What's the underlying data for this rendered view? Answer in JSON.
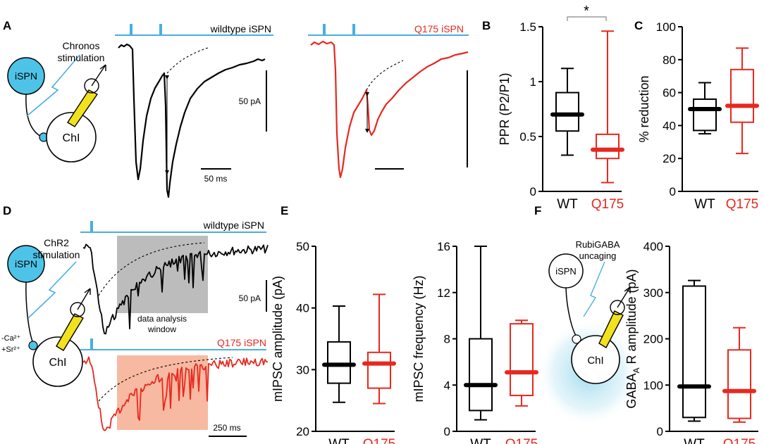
{
  "colors": {
    "wt": "#000000",
    "q175": "#e8281e",
    "stim": "#4aaee0",
    "cell": "#4ec3e8",
    "window_gray": "#bcbcbc",
    "window_orange": "#f7b9a1"
  },
  "panels": {
    "A": {
      "letter": "A",
      "stim_label_line1": "Chronos",
      "stim_label_line2": "stimulation",
      "ispn": "iSPN",
      "chi": "ChI",
      "wt_trace_label": "wildtype iSPN",
      "q175_trace_label": "Q175 iSPN",
      "scale_y": "50 pA",
      "scale_x": "50 ms"
    },
    "D": {
      "letter": "D",
      "stim_label_line1": "ChR2",
      "stim_label_line2": "stimulation",
      "ispn": "iSPN",
      "chi": "ChI",
      "ion1": "-Ca²⁺",
      "ion2": "+Sr²⁺",
      "wt_trace_label": "wildtype iSPN",
      "q175_trace_label": "Q175 iSPN",
      "window_line1": "data analysis",
      "window_line2": "window",
      "scale_y": "50 pA",
      "scale_x": "250 ms"
    },
    "F": {
      "letter": "F",
      "ispn": "iSPN",
      "chi": "ChI",
      "uncage_line1": "RubiGABA",
      "uncage_line2": "uncaging"
    },
    "B": {
      "letter": "B",
      "significance": "*"
    },
    "C": {
      "letter": "C"
    },
    "E": {
      "letter": "E"
    }
  },
  "chart_data": [
    {
      "id": "B",
      "type": "box",
      "ylabel": "PPR (P2/P1)",
      "ylim": [
        0,
        1.5
      ],
      "yticks": [
        "0",
        "0.5",
        "1",
        "1.5"
      ],
      "ytick_values": [
        0,
        0.5,
        1,
        1.5
      ],
      "categories": [
        "WT",
        "Q175"
      ],
      "boxes": [
        {
          "group": "WT",
          "min": 0.33,
          "q1": 0.55,
          "median": 0.7,
          "q3": 0.9,
          "max": 1.12
        },
        {
          "group": "Q175",
          "min": 0.08,
          "q1": 0.3,
          "median": 0.38,
          "q3": 0.52,
          "max": 1.46
        }
      ]
    },
    {
      "id": "C",
      "type": "box",
      "ylabel": "% reduction",
      "ylim": [
        0,
        100
      ],
      "yticks": [
        "0",
        "20",
        "40",
        "60",
        "80",
        "100"
      ],
      "ytick_values": [
        0,
        20,
        40,
        60,
        80,
        100
      ],
      "categories": [
        "WT",
        "Q175"
      ],
      "boxes": [
        {
          "group": "WT",
          "min": 35,
          "q1": 37,
          "median": 50,
          "q3": 56,
          "max": 66
        },
        {
          "group": "Q175",
          "min": 23,
          "q1": 42,
          "median": 52,
          "q3": 74,
          "max": 87
        }
      ]
    },
    {
      "id": "E1",
      "type": "box",
      "ylabel": "mIPSC amplitude (pA)",
      "ylim": [
        20,
        50
      ],
      "yticks": [
        "20",
        "30",
        "40",
        "50"
      ],
      "ytick_values": [
        20,
        30,
        40,
        50
      ],
      "categories": [
        "WT",
        "Q175"
      ],
      "boxes": [
        {
          "group": "WT",
          "min": 24.7,
          "q1": 27.8,
          "median": 30.8,
          "q3": 34.5,
          "max": 40.3
        },
        {
          "group": "Q175",
          "min": 24.5,
          "q1": 27,
          "median": 31,
          "q3": 32.8,
          "max": 42.2
        }
      ]
    },
    {
      "id": "E2",
      "type": "box",
      "ylabel": "mIPSC frequency (Hz)",
      "ylim": [
        0,
        16
      ],
      "yticks": [
        "0",
        "4",
        "8",
        "12",
        "16"
      ],
      "ytick_values": [
        0,
        4,
        8,
        12,
        16
      ],
      "categories": [
        "WT",
        "Q175"
      ],
      "boxes": [
        {
          "group": "WT",
          "min": 1,
          "q1": 1.8,
          "median": 4,
          "q3": 8,
          "max": 16
        },
        {
          "group": "Q175",
          "min": 2.2,
          "q1": 3.1,
          "median": 5.1,
          "q3": 9.3,
          "max": 9.6
        }
      ]
    },
    {
      "id": "F",
      "type": "box",
      "ylabel_main": "GABA",
      "ylabel_sub": "A",
      "ylabel_rest": " R amplitude (pA)",
      "ylim": [
        0,
        400
      ],
      "yticks": [
        "0",
        "100",
        "200",
        "300",
        "400"
      ],
      "ytick_values": [
        0,
        100,
        200,
        300,
        400
      ],
      "categories": [
        "WT",
        "Q175"
      ],
      "boxes": [
        {
          "group": "WT",
          "min": 22,
          "q1": 30,
          "median": 97,
          "q3": 314,
          "max": 326
        },
        {
          "group": "Q175",
          "min": 20,
          "q1": 28,
          "median": 87,
          "q3": 176,
          "max": 224
        }
      ]
    }
  ]
}
